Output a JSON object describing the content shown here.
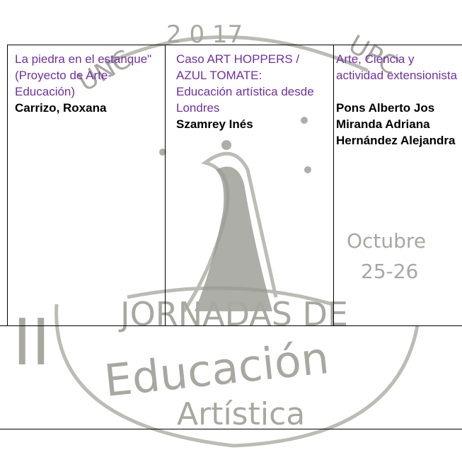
{
  "table": {
    "rows": [
      [
        {
          "title": "La piedra en el estanque\" (Proyecto de Arte-Educación)",
          "authors": [
            "Carrizo, Roxana"
          ]
        },
        {
          "title": "Caso ART HOPPERS / AZUL TOMATE: Educación artística desde Londres",
          "authors": [
            "Szamrey Inés"
          ]
        },
        {
          "title": "Arte, Ciencia y actividad extensionista",
          "authors": [
            "Pons Alberto Jos",
            "Miranda Adriana",
            "Hernández Alejandra"
          ]
        }
      ]
    ]
  },
  "watermark": {
    "year": "2 0 17",
    "left": "UNC",
    "right": "UPC",
    "roman": "II",
    "line1": "JORNADAS DE",
    "line2": "Educación",
    "line3": "Artística",
    "month": "Octubre",
    "days": "25-26"
  }
}
